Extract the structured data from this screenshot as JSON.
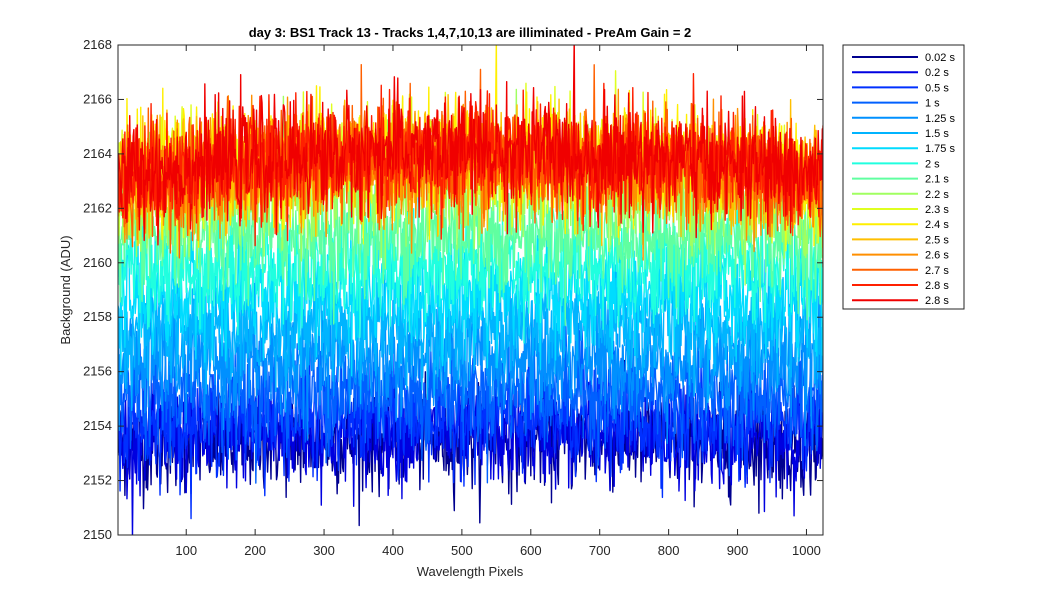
{
  "chart_data": {
    "type": "line",
    "title": "day 3: BS1  Track 13 - Tracks 1,4,7,10,13 are illiminated - PreAm Gain = 2",
    "xlabel": "Wavelength Pixels",
    "ylabel": "Background (ADU)",
    "xlim": [
      1,
      1024
    ],
    "ylim": [
      2150,
      2168
    ],
    "xticks": [
      100,
      200,
      300,
      400,
      500,
      600,
      700,
      800,
      900,
      1000
    ],
    "yticks": [
      2150,
      2152,
      2154,
      2156,
      2158,
      2160,
      2162,
      2164,
      2166,
      2168
    ],
    "grid": false,
    "legend_position": "outside-right",
    "series": [
      {
        "name": "0.02 s",
        "color": "#00008f",
        "mean": 2153.4,
        "noise": 0.9
      },
      {
        "name": "0.2 s",
        "color": "#0000e0",
        "mean": 2153.6,
        "noise": 0.9
      },
      {
        "name": "0.5 s",
        "color": "#0030ff",
        "mean": 2154.2,
        "noise": 0.95
      },
      {
        "name": "1 s",
        "color": "#0060ff",
        "mean": 2155.2,
        "noise": 1.0
      },
      {
        "name": "1.25 s",
        "color": "#0090ff",
        "mean": 2156.4,
        "noise": 1.0
      },
      {
        "name": "1.5 s",
        "color": "#00b4ff",
        "mean": 2157.6,
        "noise": 1.0
      },
      {
        "name": "1.75 s",
        "color": "#00dcff",
        "mean": 2158.8,
        "noise": 1.0
      },
      {
        "name": "2 s",
        "color": "#20ffdf",
        "mean": 2159.9,
        "noise": 1.0
      },
      {
        "name": "2.1 s",
        "color": "#60ffa0",
        "mean": 2161.0,
        "noise": 1.0
      },
      {
        "name": "2.2 s",
        "color": "#a0ff60",
        "mean": 2162.3,
        "noise": 1.0
      },
      {
        "name": "2.3 s",
        "color": "#dfff20",
        "mean": 2163.4,
        "noise": 1.0
      },
      {
        "name": "2.4 s",
        "color": "#ffef00",
        "mean": 2163.4,
        "noise": 1.0
      },
      {
        "name": "2.5 s",
        "color": "#ffbf00",
        "mean": 2163.2,
        "noise": 1.0
      },
      {
        "name": "2.6 s",
        "color": "#ff8f00",
        "mean": 2163.2,
        "noise": 1.0
      },
      {
        "name": "2.7 s",
        "color": "#ff6000",
        "mean": 2163.3,
        "noise": 1.0
      },
      {
        "name": "2.8 s",
        "color": "#ff2000",
        "mean": 2163.5,
        "noise": 1.0
      },
      {
        "name": "2.8 s",
        "color": "#f00000",
        "mean": 2163.6,
        "noise": 1.0
      }
    ]
  }
}
